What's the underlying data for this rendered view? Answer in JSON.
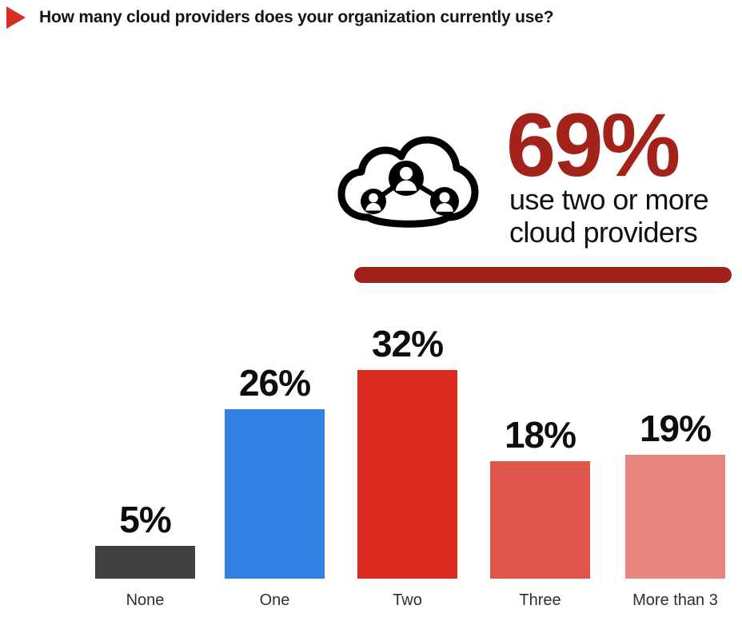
{
  "header": {
    "title": "How many cloud providers does your organization currently use?",
    "bullet_icon": "triangle-bullet-icon",
    "bullet_color": "#d42f23"
  },
  "callout": {
    "icon": "cloud-network-icon",
    "percent": "69%",
    "line1": "use two or more",
    "line2": "cloud providers",
    "accent_color": "#a3231b",
    "underline_color": "#9e2019"
  },
  "chart_data": {
    "type": "bar",
    "title": "How many cloud providers does your organization currently use?",
    "categories": [
      "None",
      "One",
      "Two",
      "Three",
      "More than 3"
    ],
    "values": [
      5,
      26,
      32,
      18,
      19
    ],
    "value_labels": [
      "5%",
      "26%",
      "32%",
      "18%",
      "19%"
    ],
    "bar_colors": [
      "#414141",
      "#3180e2",
      "#dc2a1e",
      "#e0564c",
      "#e8847c"
    ],
    "ylim": [
      0,
      35
    ],
    "grid": false,
    "legend": false,
    "annotation": "69% use two or more cloud providers"
  }
}
